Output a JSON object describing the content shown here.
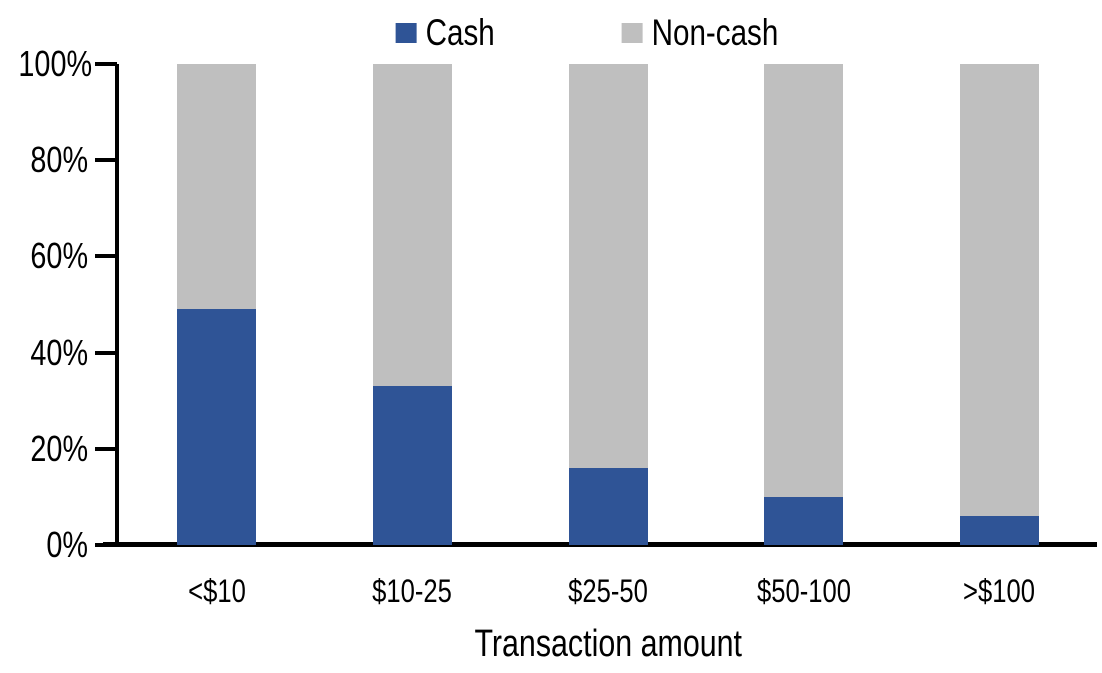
{
  "chart_data": {
    "type": "bar",
    "stacked": true,
    "stack_unit": "percent",
    "title": "",
    "xlabel": "Transaction amount",
    "ylabel": "",
    "categories": [
      "<$10",
      "$10-25",
      "$25-50",
      "$50-100",
      ">$100"
    ],
    "series": [
      {
        "name": "Cash",
        "color": "#2F5496",
        "values": [
          49,
          33,
          16,
          10,
          6
        ]
      },
      {
        "name": "Non-cash",
        "color": "#BFBFBF",
        "values": [
          51,
          67,
          84,
          90,
          94
        ]
      }
    ],
    "ylim": [
      0,
      100
    ],
    "ytick_labels": [
      "0%",
      "20%",
      "40%",
      "60%",
      "80%",
      "100%"
    ],
    "legend_position": "top-center",
    "grid": false
  },
  "colors": {
    "axis": "#000000",
    "text": "#000000",
    "background": "#FFFFFF"
  }
}
